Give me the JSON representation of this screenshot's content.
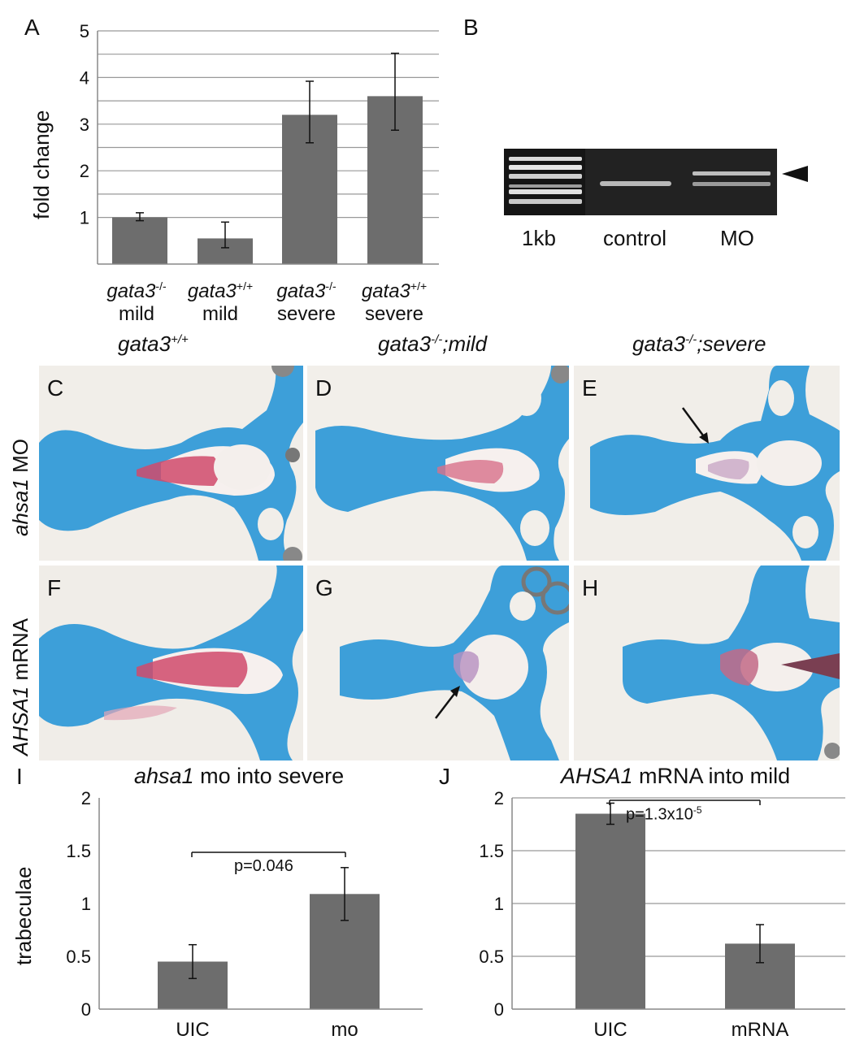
{
  "panels": {
    "A": "A",
    "B": "B",
    "C": "C",
    "D": "D",
    "E": "E",
    "F": "F",
    "G": "G",
    "H": "H",
    "I": "I",
    "J": "J"
  },
  "chartA": {
    "ylabel": "fold change",
    "yticks": [
      "1",
      "2",
      "3",
      "4",
      "5"
    ],
    "categories": [
      {
        "gene": "gata3",
        "sup": "-/-",
        "line2": "mild"
      },
      {
        "gene": "gata3",
        "sup": "+/+",
        "line2": "mild"
      },
      {
        "gene": "gata3",
        "sup": "-/-",
        "line2": "severe"
      },
      {
        "gene": "gata3",
        "sup": "+/+",
        "line2": "severe"
      }
    ]
  },
  "gel": {
    "lanes": [
      "1kb",
      "control",
      "MO"
    ]
  },
  "columns": [
    {
      "gene": "gata3",
      "sup": "+/+",
      "rest": ""
    },
    {
      "gene": "gata3",
      "sup": "-/-",
      "rest": ";mild"
    },
    {
      "gene": "gata3",
      "sup": "-/-",
      "rest": ";severe"
    }
  ],
  "rows": [
    {
      "gene": "ahsa1",
      "rest": " MO"
    },
    {
      "gene": "AHSA1",
      "rest": " mRNA"
    }
  ],
  "chartI": {
    "title_gene": "ahsa1",
    "title_rest": " mo into severe",
    "ylabel": "trabeculae",
    "yticks": [
      "0",
      "0.5",
      "1",
      "1.5",
      "2"
    ],
    "pvalue": "p=0.046"
  },
  "chartJ": {
    "title_gene": "AHSA1",
    "title_rest": " mRNA into mild",
    "yticks": [
      "0",
      "0.5",
      "1",
      "1.5",
      "2"
    ],
    "pvalue_base": "p=1.3x10",
    "pvalue_exp": "-5"
  },
  "chart_data": [
    {
      "type": "bar",
      "title": "",
      "ylabel": "fold change",
      "categories": [
        "gata3-/- mild",
        "gata3+/+ mild",
        "gata3-/- severe",
        "gata3+/+ severe"
      ],
      "values": [
        1.0,
        0.55,
        3.2,
        3.6
      ],
      "error": [
        [
          0.93,
          1.1
        ],
        [
          0.35,
          0.9
        ],
        [
          2.6,
          3.92
        ],
        [
          2.87,
          4.52
        ]
      ],
      "ylim": [
        0,
        5
      ],
      "grid": true
    },
    {
      "type": "bar",
      "title": "ahsa1 mo into severe",
      "ylabel": "trabeculae",
      "categories": [
        "UIC",
        "mo"
      ],
      "values": [
        0.45,
        1.09
      ],
      "error": [
        [
          0.29,
          0.61
        ],
        [
          0.84,
          1.34
        ]
      ],
      "ylim": [
        0,
        2
      ],
      "grid": false,
      "annotation": "p=0.046"
    },
    {
      "type": "bar",
      "title": "AHSA1 mRNA into mild",
      "ylabel": "",
      "categories": [
        "UIC",
        "mRNA"
      ],
      "values": [
        1.85,
        0.62
      ],
      "error": [
        [
          1.75,
          1.95
        ],
        [
          0.44,
          0.8
        ]
      ],
      "ylim": [
        0,
        2
      ],
      "grid": true,
      "annotation": "p=1.3x10-5"
    }
  ]
}
